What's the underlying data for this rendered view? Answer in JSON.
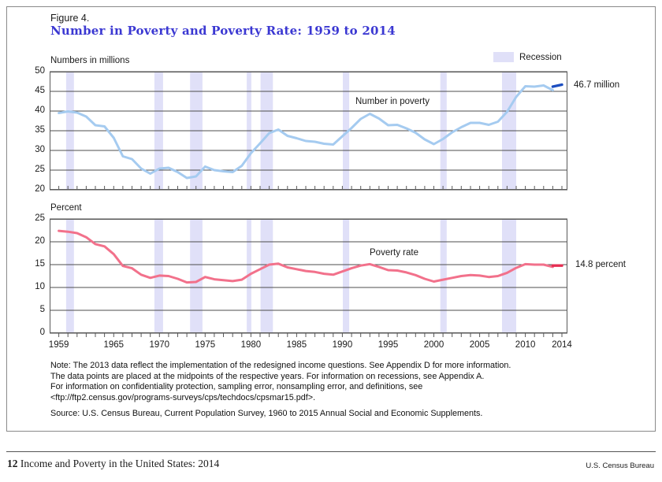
{
  "figure": {
    "label": "Figure 4.",
    "title": "Number in Poverty and Poverty Rate: 1959 to 2014",
    "legend_label": "Recession"
  },
  "colors": {
    "title_blue": "#3b38d2",
    "recession_band": "#e0e0f8",
    "number_line": "#a5cbf0",
    "number_redesign_line": "#1d4ec0",
    "rate_line": "#f2718b",
    "rate_redesign_line": "#e62e52",
    "grid": "#4d4d4d",
    "frame": "#5a5a5a"
  },
  "chart_data": [
    {
      "type": "line",
      "title": "Numbers in millions",
      "series_label": "Number in poverty",
      "annotation": "46.7 million",
      "x_domain": [
        1958.5,
        2015.1
      ],
      "ylim": [
        20,
        50
      ],
      "yticks": [
        50,
        45,
        40,
        35,
        30,
        25,
        20
      ],
      "xtick_range": [
        1959,
        2014
      ],
      "xtick_labels": [],
      "grid": true,
      "legend_position": "top-right",
      "recessions": [
        [
          1960.3,
          1961.15
        ],
        [
          1969.95,
          1970.9
        ],
        [
          1973.85,
          1975.2
        ],
        [
          1980.05,
          1980.55
        ],
        [
          1981.55,
          1982.9
        ],
        [
          1990.55,
          1991.25
        ],
        [
          2001.2,
          2001.9
        ],
        [
          2007.95,
          2009.5
        ]
      ],
      "series": [
        {
          "name": "Number in poverty",
          "color_key": "number_line",
          "width": 3,
          "points": [
            [
              1959,
              39.5
            ],
            [
              1960,
              39.9
            ],
            [
              1961,
              39.6
            ],
            [
              1962,
              38.6
            ],
            [
              1963,
              36.4
            ],
            [
              1964,
              36.1
            ],
            [
              1965,
              33.2
            ],
            [
              1966,
              28.5
            ],
            [
              1967,
              27.8
            ],
            [
              1968,
              25.4
            ],
            [
              1969,
              24.1
            ],
            [
              1970,
              25.4
            ],
            [
              1971,
              25.6
            ],
            [
              1972,
              24.5
            ],
            [
              1973,
              23.0
            ],
            [
              1974,
              23.4
            ],
            [
              1975,
              25.9
            ],
            [
              1976,
              25.0
            ],
            [
              1977,
              24.7
            ],
            [
              1978,
              24.5
            ],
            [
              1979,
              26.1
            ],
            [
              1980,
              29.3
            ],
            [
              1981,
              31.8
            ],
            [
              1982,
              34.4
            ],
            [
              1983,
              35.3
            ],
            [
              1984,
              33.7
            ],
            [
              1985,
              33.1
            ],
            [
              1986,
              32.4
            ],
            [
              1987,
              32.2
            ],
            [
              1988,
              31.7
            ],
            [
              1989,
              31.5
            ],
            [
              1990,
              33.6
            ],
            [
              1991,
              35.7
            ],
            [
              1992,
              38.0
            ],
            [
              1993,
              39.3
            ],
            [
              1994,
              38.1
            ],
            [
              1995,
              36.4
            ],
            [
              1996,
              36.5
            ],
            [
              1997,
              35.6
            ],
            [
              1998,
              34.5
            ],
            [
              1999,
              32.8
            ],
            [
              2000,
              31.6
            ],
            [
              2001,
              32.9
            ],
            [
              2002,
              34.6
            ],
            [
              2003,
              35.9
            ],
            [
              2004,
              37.0
            ],
            [
              2005,
              37.0
            ],
            [
              2006,
              36.5
            ],
            [
              2007,
              37.3
            ],
            [
              2008,
              39.8
            ],
            [
              2009,
              43.6
            ],
            [
              2010,
              46.3
            ],
            [
              2011,
              46.2
            ],
            [
              2012,
              46.5
            ],
            [
              2013,
              45.3
            ]
          ]
        },
        {
          "name": "Number in poverty (2013 redesigned income questions)",
          "color_key": "number_redesign_line",
          "width": 3.4,
          "points": [
            [
              2013,
              46.2
            ],
            [
              2014,
              46.7
            ]
          ]
        }
      ]
    },
    {
      "type": "line",
      "title": "Percent",
      "series_label": "Poverty rate",
      "annotation": "14.8 percent",
      "x_domain": [
        1958.5,
        2015.1
      ],
      "ylim": [
        0,
        25
      ],
      "yticks": [
        25,
        20,
        15,
        10,
        5,
        0
      ],
      "xtick_range": [
        1959,
        2014
      ],
      "xtick_labels": [
        1959,
        1965,
        1970,
        1975,
        1980,
        1985,
        1990,
        1995,
        2000,
        2005,
        2010,
        2014
      ],
      "grid": true,
      "legend_position": "none",
      "recessions": [
        [
          1960.3,
          1961.15
        ],
        [
          1969.95,
          1970.9
        ],
        [
          1973.85,
          1975.2
        ],
        [
          1980.05,
          1980.55
        ],
        [
          1981.55,
          1982.9
        ],
        [
          1990.55,
          1991.25
        ],
        [
          2001.2,
          2001.9
        ],
        [
          2007.95,
          2009.5
        ]
      ],
      "series": [
        {
          "name": "Poverty rate",
          "color_key": "rate_line",
          "width": 3,
          "points": [
            [
              1959,
              22.4
            ],
            [
              1960,
              22.2
            ],
            [
              1961,
              21.9
            ],
            [
              1962,
              21.0
            ],
            [
              1963,
              19.5
            ],
            [
              1964,
              19.0
            ],
            [
              1965,
              17.3
            ],
            [
              1966,
              14.7
            ],
            [
              1967,
              14.2
            ],
            [
              1968,
              12.8
            ],
            [
              1969,
              12.1
            ],
            [
              1970,
              12.6
            ],
            [
              1971,
              12.5
            ],
            [
              1972,
              11.9
            ],
            [
              1973,
              11.1
            ],
            [
              1974,
              11.2
            ],
            [
              1975,
              12.3
            ],
            [
              1976,
              11.8
            ],
            [
              1977,
              11.6
            ],
            [
              1978,
              11.4
            ],
            [
              1979,
              11.7
            ],
            [
              1980,
              13.0
            ],
            [
              1981,
              14.0
            ],
            [
              1982,
              15.0
            ],
            [
              1983,
              15.2
            ],
            [
              1984,
              14.4
            ],
            [
              1985,
              14.0
            ],
            [
              1986,
              13.6
            ],
            [
              1987,
              13.4
            ],
            [
              1988,
              13.0
            ],
            [
              1989,
              12.8
            ],
            [
              1990,
              13.5
            ],
            [
              1991,
              14.2
            ],
            [
              1992,
              14.8
            ],
            [
              1993,
              15.1
            ],
            [
              1994,
              14.5
            ],
            [
              1995,
              13.8
            ],
            [
              1996,
              13.7
            ],
            [
              1997,
              13.3
            ],
            [
              1998,
              12.7
            ],
            [
              1999,
              11.9
            ],
            [
              2000,
              11.3
            ],
            [
              2001,
              11.7
            ],
            [
              2002,
              12.1
            ],
            [
              2003,
              12.5
            ],
            [
              2004,
              12.7
            ],
            [
              2005,
              12.6
            ],
            [
              2006,
              12.3
            ],
            [
              2007,
              12.5
            ],
            [
              2008,
              13.2
            ],
            [
              2009,
              14.3
            ],
            [
              2010,
              15.1
            ],
            [
              2011,
              15.0
            ],
            [
              2012,
              15.0
            ],
            [
              2013,
              14.5
            ]
          ]
        },
        {
          "name": "Poverty rate (2013 redesigned income questions)",
          "color_key": "rate_redesign_line",
          "width": 3.4,
          "points": [
            [
              2013,
              14.8
            ],
            [
              2014,
              14.8
            ]
          ]
        }
      ]
    }
  ],
  "notes": {
    "lines": [
      "Note: The 2013 data reflect the implementation of the redesigned income questions. See Appendix D for more information.",
      "The data points are placed at the midpoints of the respective years. For information on recessions, see Appendix A.",
      "For information on confidentiality protection, sampling error, nonsampling error, and definitions, see",
      "<ftp://ftp2.census.gov/programs-surveys/cps/techdocs/cpsmar15.pdf>."
    ],
    "source": "Source: U.S. Census Bureau, Current Population Survey, 1960 to 2015 Annual Social and Economic Supplements."
  },
  "footer": {
    "page_number": "12",
    "title": "Income and Poverty in the United States: 2014",
    "right": "U.S. Census Bureau"
  }
}
